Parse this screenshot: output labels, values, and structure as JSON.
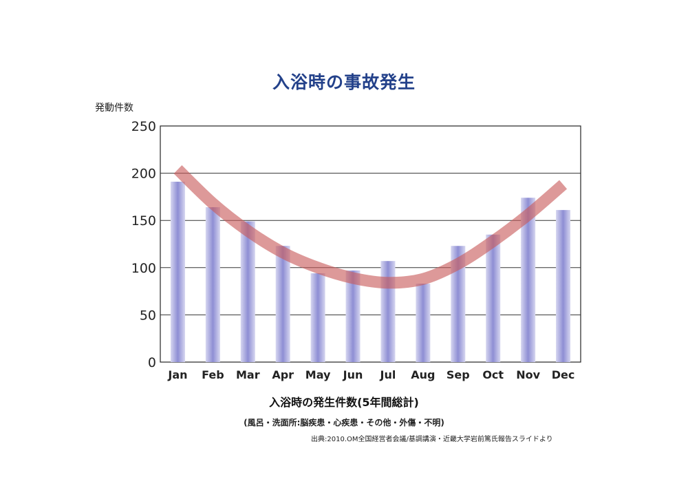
{
  "chart_data": {
    "type": "bar",
    "title": "入浴時の事故発生",
    "ylabel": "発動件数",
    "xlabel": "入浴時の発生件数(5年間総計)",
    "note": "(風呂・洗面所:脳疾患・心疾患・その他・外傷・不明)",
    "source": "出典:2010.OM全国経営者会議/基調講演・近畿大学岩前篤氏報告スライドより",
    "categories": [
      "Jan",
      "Feb",
      "Mar",
      "Apr",
      "May",
      "Jun",
      "Jul",
      "Aug",
      "Sep",
      "Oct",
      "Nov",
      "Dec"
    ],
    "values": [
      191,
      164,
      149,
      123,
      94,
      97,
      107,
      83,
      123,
      135,
      174,
      161
    ],
    "trend": [
      204,
      168,
      139,
      116,
      100,
      89,
      84,
      88,
      104,
      128,
      156,
      188
    ],
    "ylim": [
      0,
      250
    ],
    "yticks": [
      0,
      50,
      100,
      150,
      200,
      250
    ],
    "grid": true,
    "colors": {
      "bar": "#8e8ed4",
      "bar_edge": "#d6d6f0",
      "trend": "#c85a5a",
      "title": "#23418a"
    }
  }
}
